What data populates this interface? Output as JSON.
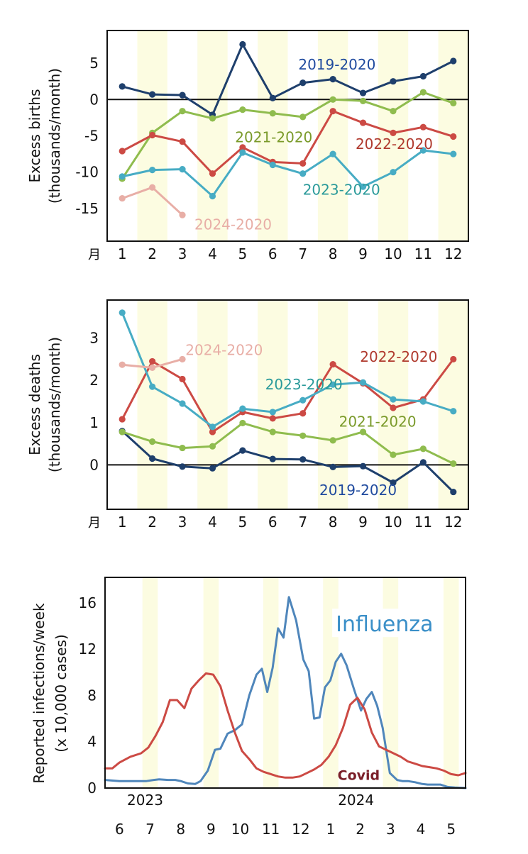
{
  "chart_data": [
    {
      "id": "births",
      "type": "line",
      "ylabel_lines": [
        "Excess births",
        "(thousands/month)"
      ],
      "month_marker": "月",
      "categories": [
        "1",
        "2",
        "3",
        "4",
        "5",
        "6",
        "7",
        "8",
        "9",
        "10",
        "11",
        "12"
      ],
      "xlim": [
        0.5,
        12.5
      ],
      "ylim": [
        -19.5,
        9.5
      ],
      "yticks": [
        5,
        0,
        -5,
        -10,
        -15
      ],
      "yticklabels": [
        "5",
        "0",
        "-5",
        "-10",
        "-15"
      ],
      "zero_line": true,
      "series": [
        {
          "name": "2019-2020",
          "color": "#1e3f6c",
          "label_color": "#1f4a9e",
          "label_x": 6.85,
          "label_y": 4.8,
          "x": [
            1,
            2,
            3,
            4,
            5,
            6,
            7,
            8,
            9,
            10,
            11,
            12
          ],
          "y": [
            1.8,
            0.7,
            0.6,
            -2.1,
            7.6,
            0.2,
            2.3,
            2.8,
            0.9,
            2.5,
            3.2,
            5.3
          ]
        },
        {
          "name": "2021-2020",
          "color": "#8fbc4e",
          "label_color": "#7a9a2a",
          "label_x": 4.75,
          "label_y": -5.2,
          "x": [
            1,
            2,
            3,
            4,
            5,
            6,
            7,
            8,
            9,
            10,
            11,
            12
          ],
          "y": [
            -10.9,
            -4.6,
            -1.6,
            -2.6,
            -1.4,
            -1.9,
            -2.4,
            0.0,
            -0.2,
            -1.6,
            1.0,
            -0.5
          ]
        },
        {
          "name": "2022-2020",
          "color": "#cc4a44",
          "label_color": "#b03a2e",
          "label_x": 8.75,
          "label_y": -6.1,
          "x": [
            1,
            2,
            3,
            4,
            5,
            6,
            7,
            8,
            9,
            10,
            11,
            12
          ],
          "y": [
            -7.1,
            -4.9,
            -5.8,
            -10.2,
            -6.6,
            -8.6,
            -8.8,
            -1.6,
            -3.2,
            -4.6,
            -3.8,
            -5.1
          ]
        },
        {
          "name": "2023-2020",
          "color": "#47acc4",
          "label_color": "#2a9a9a",
          "label_x": 7.0,
          "label_y": -12.4,
          "x": [
            1,
            2,
            3,
            4,
            5,
            6,
            7,
            8,
            9,
            10,
            11,
            12
          ],
          "y": [
            -10.6,
            -9.7,
            -9.6,
            -13.3,
            -7.3,
            -9.0,
            -10.2,
            -7.5,
            -12.0,
            -10.0,
            -7.0,
            -7.5
          ]
        },
        {
          "name": "2024-2020",
          "color": "#e8aea6",
          "label_color": "#e8aea6",
          "label_x": 3.4,
          "label_y": -17.2,
          "x": [
            1,
            2,
            3
          ],
          "y": [
            -13.6,
            -12.1,
            -15.9
          ]
        }
      ]
    },
    {
      "id": "deaths",
      "type": "line",
      "ylabel_lines": [
        "Excess deaths",
        "(thousands/month)"
      ],
      "month_marker": "月",
      "categories": [
        "1",
        "2",
        "3",
        "4",
        "5",
        "6",
        "7",
        "8",
        "9",
        "10",
        "11",
        "12"
      ],
      "xlim": [
        0.5,
        12.5
      ],
      "ylim": [
        -1.05,
        3.9
      ],
      "yticks": [
        3,
        2,
        1,
        0
      ],
      "yticklabels": [
        "3",
        "2",
        "1",
        "0"
      ],
      "zero_line": true,
      "series": [
        {
          "name": "2019-2020",
          "color": "#1e3f6c",
          "label_color": "#1f4a9e",
          "label_x": 7.55,
          "label_y": -0.6,
          "x": [
            1,
            2,
            3,
            4,
            5,
            6,
            7,
            8,
            9,
            10,
            11,
            12
          ],
          "y": [
            0.8,
            0.15,
            -0.04,
            -0.08,
            0.34,
            0.14,
            0.13,
            -0.05,
            -0.03,
            -0.42,
            0.06,
            -0.64
          ]
        },
        {
          "name": "2021-2020",
          "color": "#8fbc4e",
          "label_color": "#7a9a2a",
          "label_x": 8.2,
          "label_y": 1.02,
          "x": [
            1,
            2,
            3,
            4,
            5,
            6,
            7,
            8,
            9,
            10,
            11,
            12
          ],
          "y": [
            0.78,
            0.55,
            0.4,
            0.44,
            0.99,
            0.78,
            0.69,
            0.58,
            0.78,
            0.24,
            0.38,
            0.03
          ]
        },
        {
          "name": "2022-2020",
          "color": "#cc4a44",
          "label_color": "#b03a2e",
          "label_x": 8.9,
          "label_y": 2.56,
          "x": [
            1,
            2,
            3,
            4,
            5,
            6,
            7,
            8,
            9,
            10,
            11,
            12
          ],
          "y": [
            1.08,
            2.45,
            2.03,
            0.78,
            1.25,
            1.1,
            1.22,
            2.38,
            1.93,
            1.35,
            1.55,
            2.5
          ]
        },
        {
          "name": "2023-2020",
          "color": "#47acc4",
          "label_color": "#2a9a9a",
          "label_x": 5.75,
          "label_y": 1.9,
          "x": [
            1,
            2,
            3,
            4,
            5,
            6,
            7,
            8,
            9,
            10,
            11,
            12
          ],
          "y": [
            3.6,
            1.85,
            1.45,
            0.9,
            1.33,
            1.25,
            1.53,
            1.9,
            1.95,
            1.55,
            1.5,
            1.27
          ]
        },
        {
          "name": "2024-2020",
          "color": "#e8aea6",
          "label_color": "#e8aea6",
          "label_x": 3.1,
          "label_y": 2.72,
          "x": [
            1,
            2,
            3
          ],
          "y": [
            2.37,
            2.3,
            2.5
          ]
        }
      ]
    },
    {
      "id": "infections",
      "type": "line",
      "ylabel_lines": [
        "Reported infections/week",
        "(x 10,000 cases)"
      ],
      "xlim": [
        0,
        100
      ],
      "ylim": [
        0,
        18.2
      ],
      "yticks": [
        0,
        4,
        8,
        12,
        16
      ],
      "yticklabels": [
        "0",
        "4",
        "8",
        "12",
        "16"
      ],
      "month_ticks": [
        {
          "x": 4,
          "label": "6"
        },
        {
          "x": 12.5,
          "label": "7"
        },
        {
          "x": 21,
          "label": "8"
        },
        {
          "x": 29.4,
          "label": "9"
        },
        {
          "x": 37.5,
          "label": "10"
        },
        {
          "x": 46,
          "label": "11"
        },
        {
          "x": 54.3,
          "label": "12"
        },
        {
          "x": 62.6,
          "label": "1"
        },
        {
          "x": 70.8,
          "label": "2"
        },
        {
          "x": 79.2,
          "label": "3"
        },
        {
          "x": 87.6,
          "label": "4"
        },
        {
          "x": 96,
          "label": "5"
        }
      ],
      "year_labels": [
        {
          "x": 6,
          "label": "2023"
        },
        {
          "x": 64.5,
          "label": "2024"
        }
      ],
      "series": [
        {
          "name": "Influenza",
          "color": "#4f86bb",
          "label_color": "#3a8fc8",
          "label_x": 64,
          "label_y": 13.9,
          "x": [
            0,
            4,
            8,
            11.5,
            13.5,
            15,
            17.5,
            19.5,
            21,
            23,
            25,
            26.5,
            28.5,
            30.5,
            32,
            34,
            36,
            38,
            40,
            42,
            43.5,
            45,
            46.5,
            48,
            49.5,
            51,
            53,
            55,
            56.5,
            58,
            59.5,
            61,
            62.5,
            64,
            65.5,
            67,
            69,
            71,
            72.5,
            74,
            75.5,
            77,
            79,
            81,
            82.5,
            84,
            86,
            88,
            89.5,
            91,
            93,
            95,
            97,
            100
          ],
          "y": [
            0.7,
            0.6,
            0.6,
            0.6,
            0.7,
            0.75,
            0.7,
            0.7,
            0.6,
            0.4,
            0.35,
            0.6,
            1.5,
            3.3,
            3.4,
            4.7,
            5.0,
            5.5,
            8.0,
            9.8,
            10.3,
            8.3,
            10.4,
            13.8,
            13.0,
            16.5,
            14.5,
            11.1,
            10.1,
            6.0,
            6.1,
            8.7,
            9.3,
            10.9,
            11.6,
            10.6,
            8.6,
            6.7,
            7.7,
            8.3,
            7.1,
            5.2,
            1.3,
            0.7,
            0.6,
            0.6,
            0.5,
            0.35,
            0.3,
            0.3,
            0.3,
            0.1,
            0.05,
            0.0
          ]
        },
        {
          "name": "Covid",
          "color": "#cc4a44",
          "label_color": "#7a1e28",
          "label_x": 64.5,
          "label_y": 1.2,
          "x": [
            0,
            2,
            4,
            7,
            10,
            12,
            14,
            16,
            18,
            20,
            22,
            24,
            26,
            28,
            30,
            32,
            34,
            36,
            38,
            40,
            42,
            44,
            46,
            48,
            50,
            52,
            54,
            56,
            58,
            60,
            62,
            64,
            66,
            68,
            70,
            72,
            74,
            76,
            78,
            80,
            82,
            84,
            86,
            88,
            90,
            92,
            94,
            96,
            98,
            100
          ],
          "y": [
            1.7,
            1.7,
            2.2,
            2.7,
            3.0,
            3.5,
            4.5,
            5.7,
            7.6,
            7.6,
            6.9,
            8.6,
            9.3,
            9.9,
            9.8,
            8.8,
            6.7,
            4.8,
            3.2,
            2.5,
            1.7,
            1.4,
            1.2,
            1.0,
            0.9,
            0.9,
            1.0,
            1.3,
            1.6,
            2.0,
            2.7,
            3.7,
            5.2,
            7.2,
            7.8,
            6.8,
            4.8,
            3.6,
            3.3,
            3.0,
            2.7,
            2.3,
            2.1,
            1.9,
            1.8,
            1.7,
            1.5,
            1.2,
            1.1,
            1.3
          ]
        }
      ]
    }
  ],
  "colors": {
    "stripe": "#fcfce1",
    "frame": "#111111",
    "text": "#111111"
  }
}
